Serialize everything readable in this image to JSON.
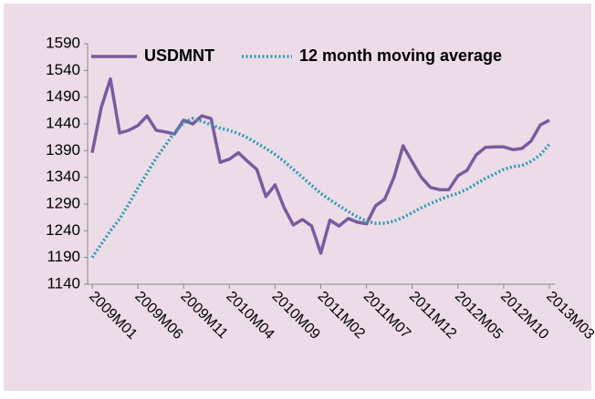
{
  "chart_data": {
    "type": "line",
    "categories": [
      "2009M01",
      null,
      null,
      null,
      null,
      "2009M06",
      null,
      null,
      null,
      null,
      "2009M11",
      null,
      null,
      null,
      null,
      "2010M04",
      null,
      null,
      null,
      null,
      "2010M09",
      null,
      null,
      null,
      null,
      "2011M02",
      null,
      null,
      null,
      null,
      "2011M07",
      null,
      null,
      null,
      null,
      "2011M12",
      null,
      null,
      null,
      null,
      "2012M05",
      null,
      null,
      null,
      null,
      "2012M10",
      null,
      null,
      null,
      null,
      "2013M03"
    ],
    "series": [
      {
        "name": "USDMNT",
        "color": "#7b5aa0",
        "style": "solid",
        "values": [
          1386,
          1471,
          1524,
          1423,
          1428,
          1437,
          1455,
          1428,
          1425,
          1421,
          1447,
          1440,
          1455,
          1450,
          1368,
          1374,
          1386,
          1370,
          1355,
          1304,
          1326,
          1283,
          1251,
          1261,
          1249,
          1198,
          1260,
          1249,
          1263,
          1256,
          1253,
          1287,
          1299,
          1340,
          1399,
          1369,
          1340,
          1321,
          1317,
          1317,
          1343,
          1353,
          1382,
          1396,
          1397,
          1397,
          1392,
          1394,
          1408,
          1438,
          1447
        ]
      },
      {
        "name": "12 month moving average",
        "color": "#2f9ab3",
        "style": "dotted",
        "values": [
          1190,
          1215,
          1240,
          1262,
          1290,
          1320,
          1348,
          1376,
          1400,
          1424,
          1442,
          1450,
          1445,
          1438,
          1432,
          1428,
          1422,
          1414,
          1404,
          1394,
          1383,
          1370,
          1355,
          1340,
          1325,
          1310,
          1298,
          1287,
          1276,
          1266,
          1258,
          1254,
          1254,
          1258,
          1265,
          1274,
          1283,
          1291,
          1298,
          1305,
          1310,
          1318,
          1328,
          1338,
          1346,
          1355,
          1360,
          1362,
          1370,
          1382,
          1402
        ]
      }
    ],
    "ylim": [
      1140,
      1590
    ],
    "yticks": [
      1140,
      1190,
      1240,
      1290,
      1340,
      1390,
      1440,
      1490,
      1540,
      1590
    ],
    "legend": "top"
  }
}
